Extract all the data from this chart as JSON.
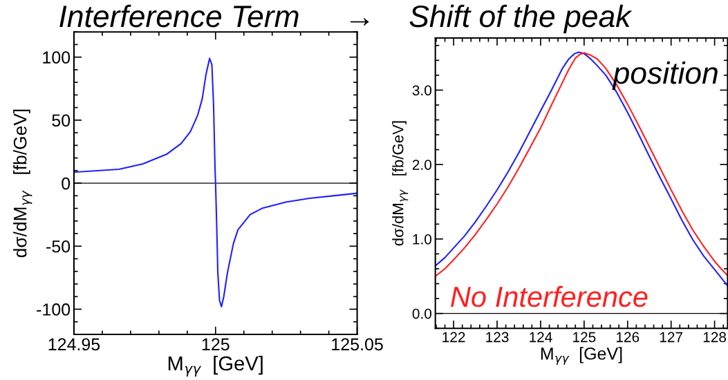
{
  "chart_data": [
    {
      "type": "line",
      "title": "Interference Term",
      "xlabel": "M$_{γγ}$  [GeV]",
      "ylabel": "dσ/dM$_{γγ}$   [fb/GeV]",
      "annotations": [
        "→"
      ],
      "xlim": [
        124.95,
        125.05
      ],
      "xticks": [
        124.95,
        125,
        125.05
      ],
      "ylim": [
        -120,
        120
      ],
      "yticks": [
        -100,
        -50,
        0,
        50,
        100
      ],
      "ref_lines": [
        {
          "axis": "y",
          "value": 0,
          "color": "#000000"
        }
      ],
      "series": [
        {
          "color": "#1f1fff",
          "x": [
            124.95,
            124.9659,
            124.9743,
            124.9827,
            124.9878,
            124.9911,
            124.9937,
            124.9953,
            124.9966,
            124.9979,
            124.9987,
            124.9993,
            124.9998,
            125.0,
            125.0004,
            125.0008,
            125.0014,
            125.0021,
            125.0029,
            125.0042,
            125.0063,
            125.0079,
            125.0122,
            125.0164,
            125.0248,
            125.0332,
            125.0416,
            125.05
          ],
          "values": [
            8.7,
            11,
            15.3,
            22.9,
            31.4,
            40.8,
            54,
            67,
            86,
            99,
            94,
            62,
            12.5,
            0,
            -33,
            -71,
            -93,
            -98,
            -90,
            -71,
            -48,
            -37,
            -25,
            -20,
            -15,
            -12,
            -10,
            -8
          ]
        }
      ]
    },
    {
      "type": "line",
      "title": "Shift of the peak",
      "xlabel": "M$_{γγ}$  [GeV]",
      "ylabel": "dσ/dM$_{γγ}$   [fb/GeV]",
      "annotations": [
        "position"
      ],
      "xlim": [
        121.58,
        128.3
      ],
      "xticks": [
        122,
        123,
        124,
        125,
        126,
        127,
        128
      ],
      "ylim": [
        -0.2,
        3.7
      ],
      "yticks": [
        {
          "value": 0,
          "label": "0.0"
        },
        {
          "value": 1,
          "label": "1.0"
        },
        {
          "value": 2,
          "label": "2.0"
        },
        {
          "value": 3,
          "label": "3.0"
        }
      ],
      "ref_lines": [
        {
          "axis": "y",
          "value": 0,
          "color": "#000000"
        }
      ],
      "series": [
        {
          "color": "#1f1fff",
          "x": [
            121.58,
            121.8,
            122,
            122.25,
            122.5,
            122.75,
            123,
            123.25,
            123.5,
            123.75,
            124,
            124.25,
            124.5,
            124.65,
            124.78,
            124.88,
            125,
            125.15,
            125.3,
            125.5,
            125.75,
            126,
            126.25,
            126.5,
            126.75,
            127,
            127.25,
            127.5,
            127.75,
            128,
            128.15,
            128.3
          ],
          "values": [
            0.64,
            0.75,
            0.88,
            1.04,
            1.23,
            1.44,
            1.66,
            1.9,
            2.16,
            2.44,
            2.72,
            3.0,
            3.29,
            3.42,
            3.49,
            3.51,
            3.49,
            3.42,
            3.33,
            3.2,
            2.97,
            2.7,
            2.41,
            2.11,
            1.82,
            1.54,
            1.25,
            0.99,
            0.77,
            0.59,
            0.48,
            0.37
          ]
        },
        {
          "name": "No Interference",
          "color": "#ff1f1f",
          "x": [
            121.58,
            121.8,
            122,
            122.25,
            122.5,
            122.75,
            123,
            123.25,
            123.5,
            123.75,
            124,
            124.25,
            124.5,
            124.65,
            124.8,
            124.9,
            125,
            125.15,
            125.3,
            125.5,
            125.75,
            126,
            126.25,
            126.5,
            126.75,
            127,
            127.25,
            127.5,
            127.75,
            128,
            128.15,
            128.3
          ],
          "values": [
            0.5,
            0.6,
            0.72,
            0.88,
            1.06,
            1.26,
            1.47,
            1.7,
            1.95,
            2.22,
            2.49,
            2.8,
            3.1,
            3.28,
            3.43,
            3.48,
            3.5,
            3.47,
            3.42,
            3.29,
            3.07,
            2.81,
            2.53,
            2.24,
            1.95,
            1.66,
            1.38,
            1.12,
            0.9,
            0.7,
            0.6,
            0.51
          ]
        }
      ]
    }
  ]
}
